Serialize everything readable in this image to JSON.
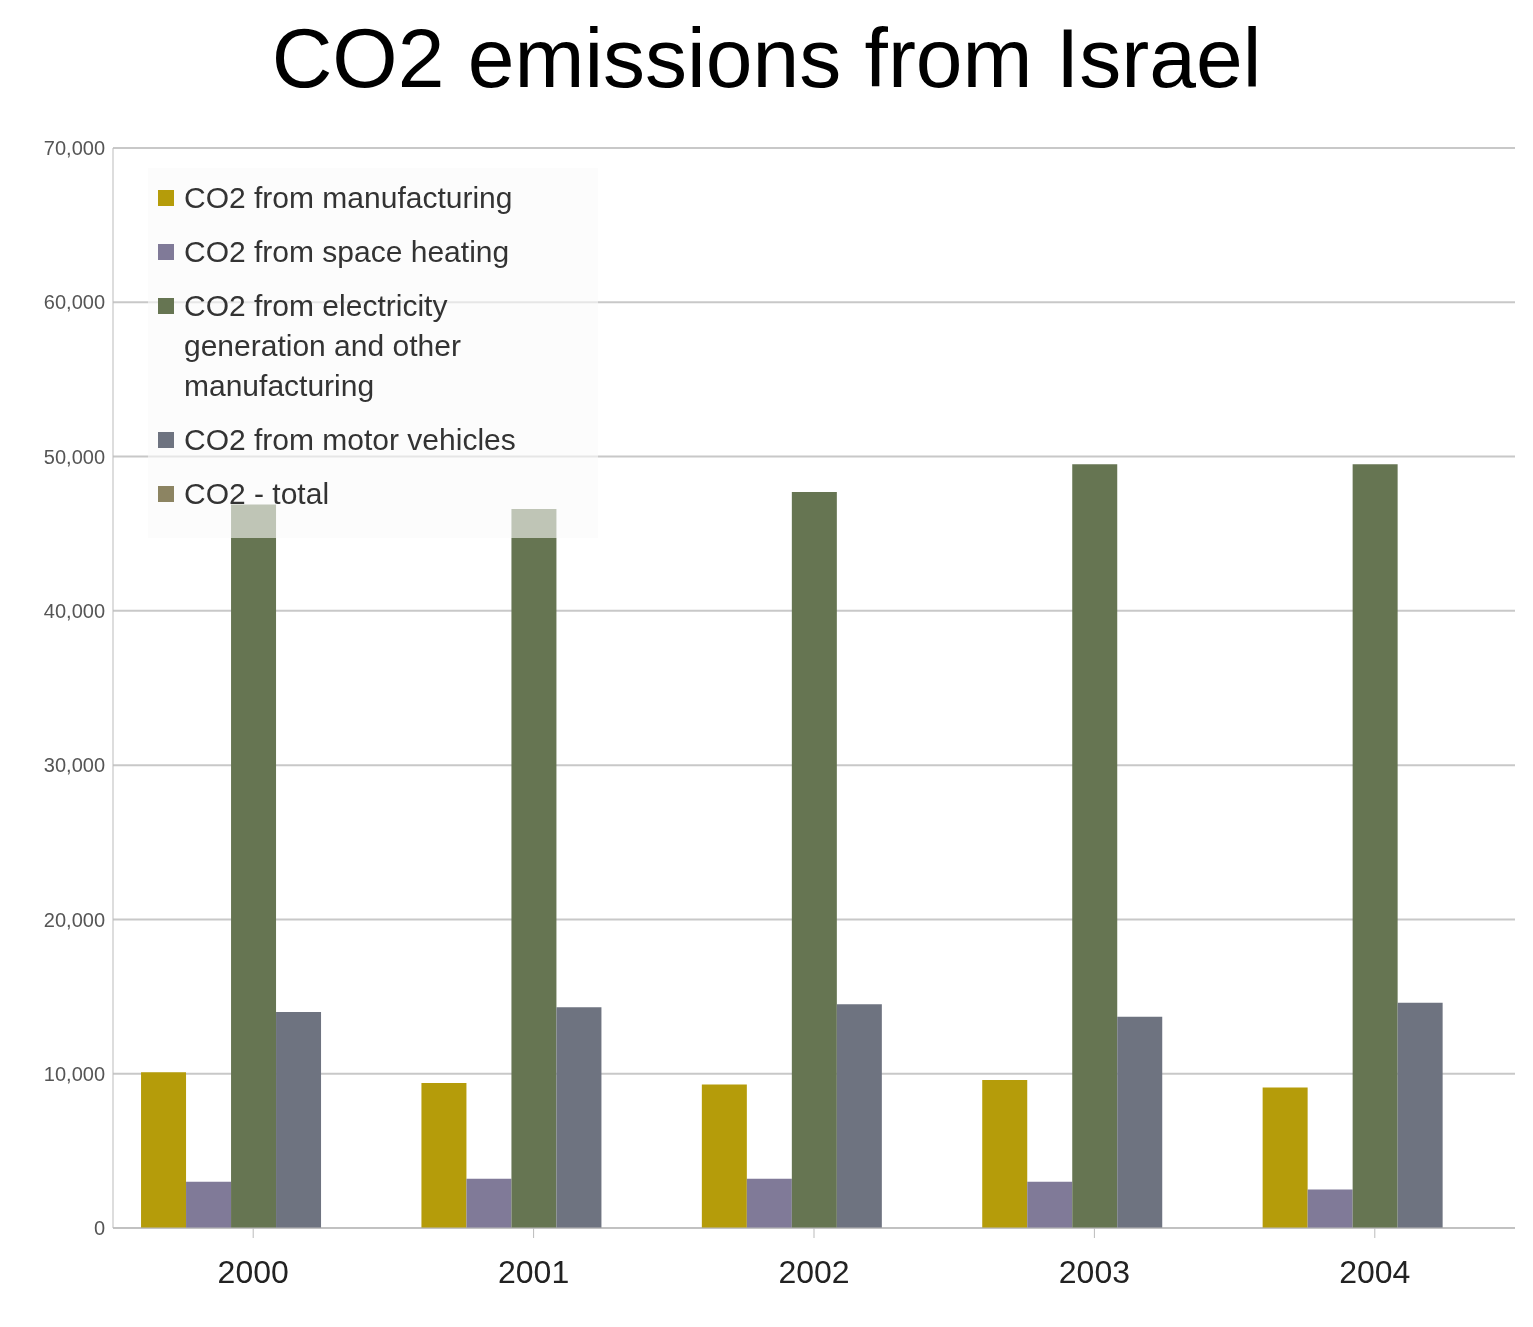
{
  "chart_data": {
    "type": "bar",
    "title": "CO2 emissions from Israel",
    "categories": [
      "2000",
      "2001",
      "2002",
      "2003",
      "2004"
    ],
    "series": [
      {
        "name": "CO2 from manufacturing",
        "color": "#b59c0a",
        "values": [
          10100,
          9400,
          9300,
          9600,
          9100
        ]
      },
      {
        "name": "CO2 from space heating",
        "color": "#807a98",
        "values": [
          3000,
          3200,
          3200,
          3000,
          2500
        ]
      },
      {
        "name": "CO2 from electricity generation and other manufacturing",
        "color": "#667552",
        "values": [
          46900,
          46600,
          47700,
          49500,
          49500
        ]
      },
      {
        "name": "CO2 from motor vehicles",
        "color": "#6e7380",
        "values": [
          14000,
          14300,
          14500,
          13700,
          14600
        ]
      },
      {
        "name": "CO2 - total",
        "color": "#8c8462",
        "values": [
          null,
          null,
          null,
          null,
          null
        ]
      }
    ],
    "ylim": [
      0,
      70000
    ],
    "yticks": [
      0,
      {
        "value": 10000,
        "label": "10,000"
      },
      {
        "value": 20000,
        "label": "20,000"
      },
      {
        "value": 30000,
        "label": "30,000"
      },
      {
        "value": 40000,
        "label": "40,000"
      },
      {
        "value": 50000,
        "label": "50,000"
      },
      {
        "value": 60000,
        "label": "60,000"
      },
      {
        "value": 70000,
        "label": "70,000"
      }
    ],
    "grid": "y",
    "legend": "top left"
  }
}
